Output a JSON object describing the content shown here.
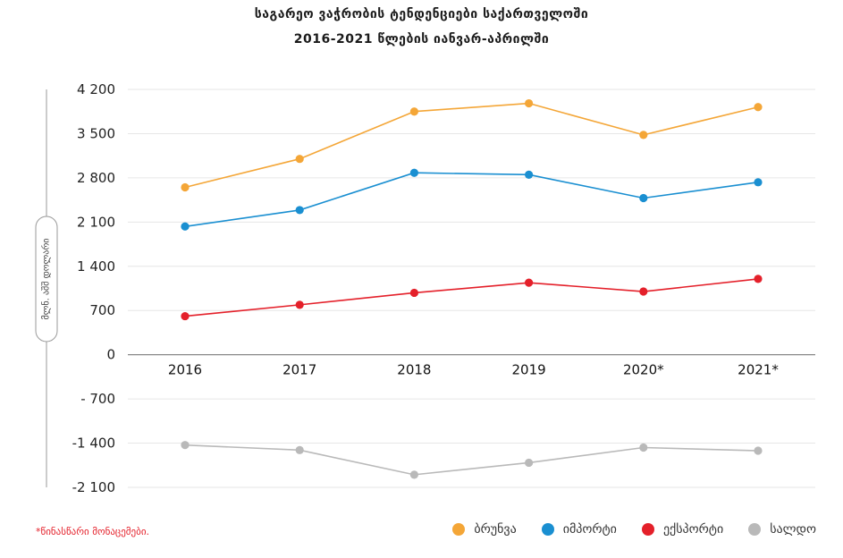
{
  "title_line1": "საგარეო  ვაჭრობის ტენდენციები საქართველოში",
  "title_line2": "2016-2021 წლების იანვარ-აპრილში",
  "footnote": "*წინასწარი მონაცემები.",
  "chart_data": {
    "type": "line",
    "categories": [
      "2016",
      "2017",
      "2018",
      "2019",
      "2020*",
      "2021*"
    ],
    "ylabel": "მლნ. აშშ დოლარი",
    "ylim": [
      -2100,
      4200
    ],
    "yticks": [
      4200,
      3500,
      2800,
      2100,
      1400,
      700,
      0,
      -700,
      -1400,
      -2100
    ],
    "ytick_labels": [
      "4 200",
      "3 500",
      "2 800",
      "2 100",
      "1 400",
      "700",
      "0",
      "- 700",
      "-1 400",
      "-2 100"
    ],
    "grid": true,
    "legend_position": "bottom-right",
    "series": [
      {
        "name": "ბრუნვა",
        "color": "#f4a637",
        "values": [
          2650,
          3100,
          3850,
          3980,
          3480,
          3920
        ]
      },
      {
        "name": "იმპორტი",
        "color": "#1a8fd1",
        "values": [
          2030,
          2290,
          2880,
          2850,
          2480,
          2730
        ]
      },
      {
        "name": "ექსპორტი",
        "color": "#e4202a",
        "values": [
          610,
          790,
          980,
          1140,
          1000,
          1200
        ]
      },
      {
        "name": "სალდო",
        "color": "#b9b9b9",
        "values": [
          -1430,
          -1510,
          -1900,
          -1710,
          -1470,
          -1520
        ]
      }
    ]
  }
}
